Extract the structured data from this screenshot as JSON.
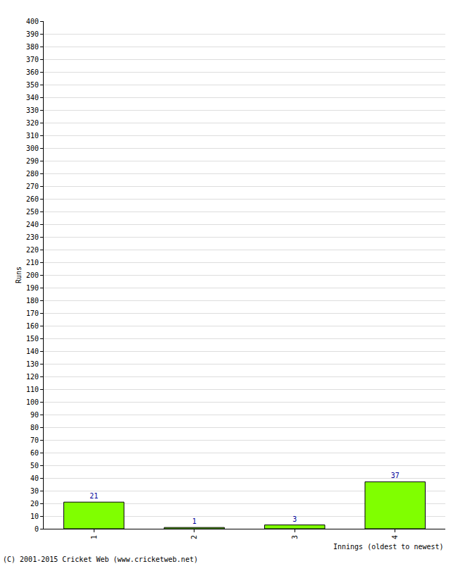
{
  "chart_data": {
    "type": "bar",
    "categories": [
      "1",
      "2",
      "3",
      "4"
    ],
    "values": [
      21,
      1,
      3,
      37
    ],
    "color": "#80ff00",
    "xlabel": "Innings (oldest to newest)",
    "ylabel": "Runs",
    "annotations": [
      "(C) 2001-2015 Cricket Web (www.cricketweb.net)"
    ],
    "ylim": [
      0,
      400
    ],
    "yticks": [
      0,
      10,
      20,
      30,
      40,
      50,
      60,
      70,
      80,
      90,
      100,
      110,
      120,
      130,
      140,
      150,
      160,
      170,
      180,
      190,
      200,
      210,
      220,
      230,
      240,
      250,
      260,
      270,
      280,
      290,
      300,
      310,
      320,
      330,
      340,
      350,
      360,
      370,
      380,
      390,
      400
    ],
    "grid": true,
    "data_labels": true
  }
}
